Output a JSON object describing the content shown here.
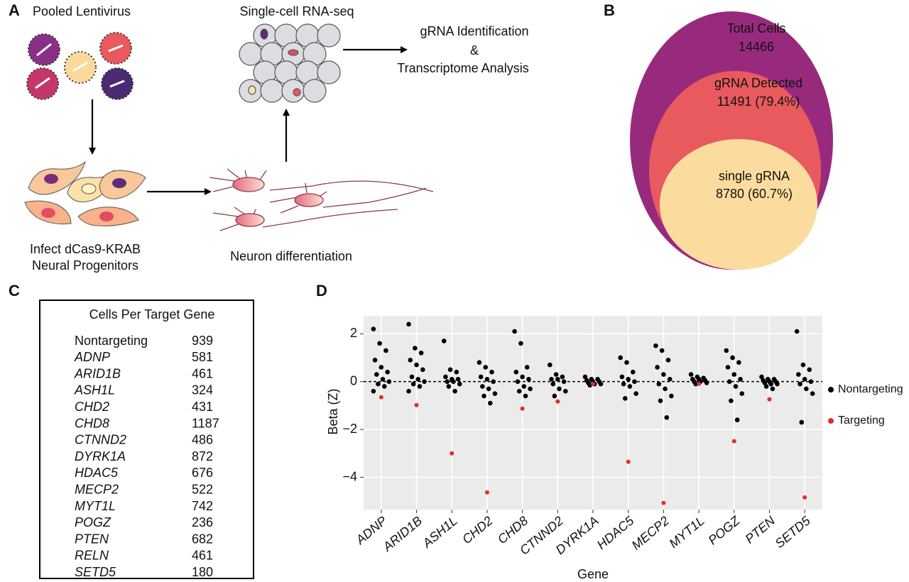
{
  "panel_a": {
    "label": "A",
    "virus_title": "Pooled Lentivirus",
    "seq_title": "Single-cell RNA-seq",
    "analysis": [
      "gRNA Identification",
      "&",
      "Transcriptome Analysis"
    ],
    "infect": [
      "Infect dCas9-KRAB",
      "Neural Progenitors"
    ],
    "differentiation": "Neuron differentiation"
  },
  "panel_b": {
    "label": "B",
    "total": [
      "Total Cells",
      "14466"
    ],
    "detected": [
      "gRNA Detected",
      "11491 (79.4%)"
    ],
    "single": [
      "single gRNA",
      "8780 (60.7%)"
    ]
  },
  "panel_c": {
    "label": "C",
    "table": {
      "title": "Cells Per Target Gene",
      "rows": [
        [
          "Nontargeting",
          "939"
        ],
        [
          "ADNP",
          "581"
        ],
        [
          "ARID1B",
          "461"
        ],
        [
          "ASH1L",
          "324"
        ],
        [
          "CHD2",
          "431"
        ],
        [
          "CHD8",
          "1187"
        ],
        [
          "CTNND2",
          "486"
        ],
        [
          "DYRK1A",
          "872"
        ],
        [
          "HDAC5",
          "676"
        ],
        [
          "MECP2",
          "522"
        ],
        [
          "MYT1L",
          "742"
        ],
        [
          "POGZ",
          "236"
        ],
        [
          "PTEN",
          "682"
        ],
        [
          "RELN",
          "461"
        ],
        [
          "SETD5",
          "180"
        ]
      ]
    }
  },
  "panel_d_label": "D",
  "chart_data": {
    "type": "strip",
    "x_label": "Gene",
    "y_label": "Beta (Z)",
    "categories": [
      "ADNP",
      "ARID1B",
      "ASH1L",
      "CHD2",
      "CHD8",
      "CTNND2",
      "DYRK1A",
      "HDAC5",
      "MECP2",
      "MYT1L",
      "POGZ",
      "PTEN",
      "SETD5"
    ],
    "series": [
      {
        "name": "Nontargeting",
        "color": "#000000",
        "values": [
          [
            2.2,
            1.6,
            1.3,
            0.9,
            0.6,
            0.4,
            0.3,
            0.1,
            0,
            -0.1,
            -0.2,
            -0.4
          ],
          [
            2.4,
            1.4,
            1.2,
            0.9,
            0.7,
            0.5,
            0.2,
            0.1,
            0,
            -0.1,
            -0.2,
            -0.4
          ],
          [
            1.7,
            0.5,
            0.4,
            0.2,
            0.1,
            0.1,
            0,
            0,
            -0.1,
            -0.2,
            -0.4
          ],
          [
            0.8,
            0.6,
            0.4,
            0.2,
            0.1,
            0,
            -0.2,
            -0.3,
            -0.5,
            -0.6,
            -0.9
          ],
          [
            2.1,
            1.6,
            0.6,
            0.4,
            0.2,
            0.1,
            0,
            -0.2,
            -0.3,
            -0.4,
            -0.6
          ],
          [
            0.7,
            0.3,
            0.2,
            0.1,
            0.1,
            0,
            -0.1,
            -0.3,
            -0.4,
            -0.6
          ],
          [
            0.2,
            0.1,
            0.1,
            0.05,
            0,
            0,
            -0.05,
            -0.1,
            -0.1,
            -0.15
          ],
          [
            1.0,
            0.8,
            0.4,
            0.2,
            0.1,
            0,
            -0.1,
            -0.2,
            -0.5,
            -0.7
          ],
          [
            1.5,
            1.3,
            0.9,
            0.6,
            0.3,
            0.1,
            -0.1,
            -0.3,
            -0.6,
            -0.8,
            -1.5
          ],
          [
            0.3,
            0.2,
            0.15,
            0.1,
            0.1,
            0.05,
            0,
            0,
            -0.05,
            -0.1
          ],
          [
            1.3,
            1.0,
            0.8,
            0.6,
            0.3,
            0.1,
            0,
            -0.2,
            -0.5,
            -0.8,
            -1.6
          ],
          [
            0.2,
            0.1,
            0.1,
            0.05,
            0,
            0,
            -0.05,
            -0.1,
            -0.1,
            -0.2,
            -0.3
          ],
          [
            2.1,
            0.7,
            0.5,
            0.3,
            0.1,
            0,
            -0.1,
            -0.3,
            -0.5,
            -1.7
          ]
        ]
      },
      {
        "name": "Targeting",
        "color": "#e8292a",
        "values": [
          -0.65,
          -0.98,
          -3.0,
          -4.63,
          -1.13,
          -0.83,
          -0.09,
          -3.35,
          -5.07,
          -0.09,
          -2.49,
          -0.74,
          -4.84
        ]
      }
    ],
    "ylim": [
      -5.35,
      2.75
    ],
    "yticks": [
      {
        "value": -4,
        "label": "−4"
      },
      {
        "value": -2,
        "label": "−2"
      },
      0,
      2
    ],
    "reference_line": 0,
    "grid": true,
    "legend": "right"
  }
}
